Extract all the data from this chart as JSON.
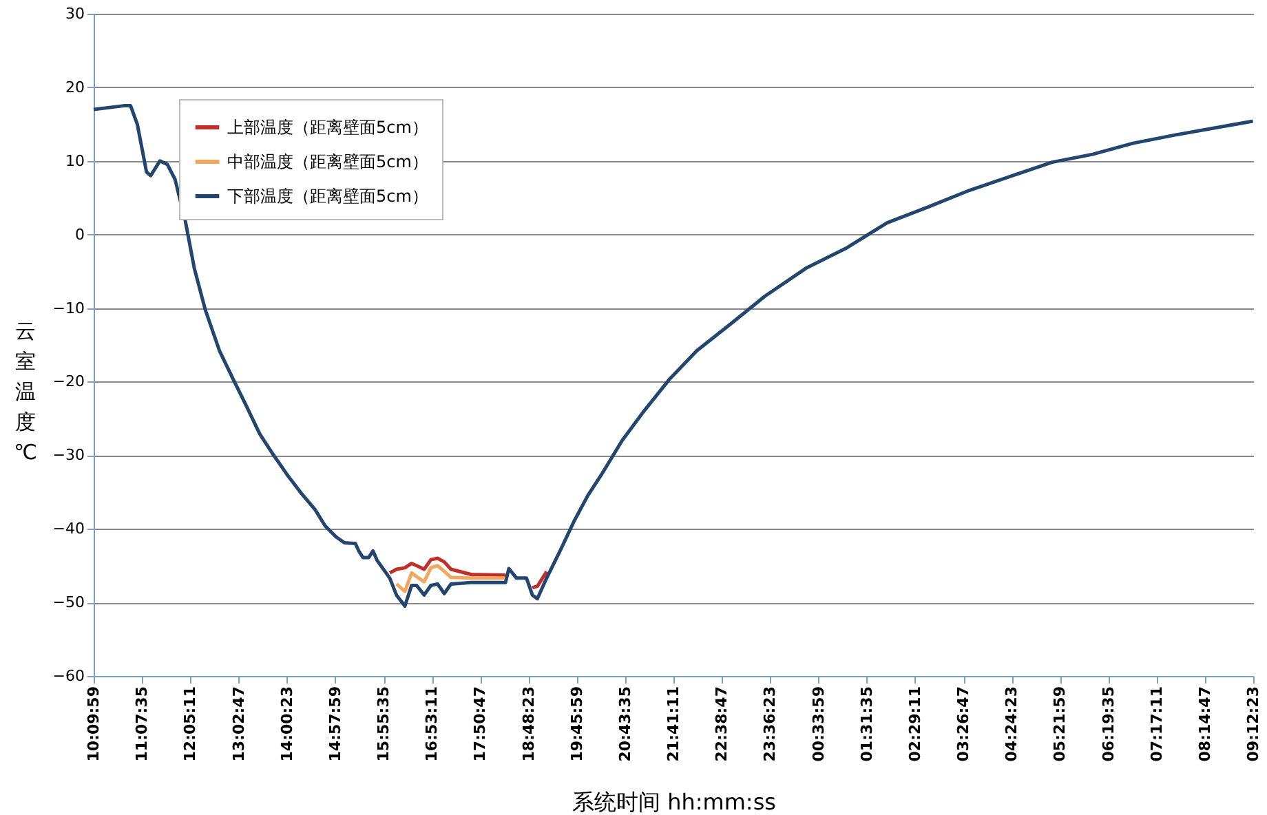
{
  "chart_data": {
    "type": "line",
    "xlabel": "系统时间 hh:mm:ss",
    "ylabel": "云室温度℃",
    "ylim": [
      -60,
      30
    ],
    "yticks": [
      -60,
      -50,
      -40,
      -30,
      -20,
      -10,
      0,
      10,
      20,
      30
    ],
    "xlim": [
      "2000-01-01T10:09:59",
      "2000-01-02T09:12:23"
    ],
    "xticks": [
      {
        "value": "2000-01-01T10:09:59",
        "label": "10:09:59"
      },
      {
        "value": "2000-01-01T11:07:35",
        "label": "11:07:35"
      },
      {
        "value": "2000-01-01T12:05:11",
        "label": "12:05:11"
      },
      {
        "value": "2000-01-01T13:02:47",
        "label": "13:02:47"
      },
      {
        "value": "2000-01-01T14:00:23",
        "label": "14:00:23"
      },
      {
        "value": "2000-01-01T14:57:59",
        "label": "14:57:59"
      },
      {
        "value": "2000-01-01T15:55:35",
        "label": "15:55:35"
      },
      {
        "value": "2000-01-01T16:53:11",
        "label": "16:53:11"
      },
      {
        "value": "2000-01-01T17:50:47",
        "label": "17:50:47"
      },
      {
        "value": "2000-01-01T18:48:23",
        "label": "18:48:23"
      },
      {
        "value": "2000-01-01T19:45:59",
        "label": "19:45:59"
      },
      {
        "value": "2000-01-01T20:43:35",
        "label": "20:43:35"
      },
      {
        "value": "2000-01-01T21:41:11",
        "label": "21:41:11"
      },
      {
        "value": "2000-01-01T22:38:47",
        "label": "22:38:47"
      },
      {
        "value": "2000-01-01T23:36:23",
        "label": "23:36:23"
      },
      {
        "value": "2000-01-02T00:33:59",
        "label": "00:33:59"
      },
      {
        "value": "2000-01-02T01:31:35",
        "label": "01:31:35"
      },
      {
        "value": "2000-01-02T02:29:11",
        "label": "02:29:11"
      },
      {
        "value": "2000-01-02T03:26:47",
        "label": "03:26:47"
      },
      {
        "value": "2000-01-02T04:24:23",
        "label": "04:24:23"
      },
      {
        "value": "2000-01-02T05:21:59",
        "label": "05:21:59"
      },
      {
        "value": "2000-01-02T06:19:35",
        "label": "06:19:35"
      },
      {
        "value": "2000-01-02T07:17:11",
        "label": "07:17:11"
      },
      {
        "value": "2000-01-02T08:14:47",
        "label": "08:14:47"
      },
      {
        "value": "2000-01-02T09:12:23",
        "label": "09:12:23"
      }
    ],
    "x": [
      "2000-01-01T10:10",
      "2000-01-01T10:46",
      "2000-01-01T10:54",
      "2000-01-01T11:02",
      "2000-01-01T11:13",
      "2000-01-01T11:18",
      "2000-01-01T11:29",
      "2000-01-01T11:38",
      "2000-01-01T11:47",
      "2000-01-01T11:59",
      "2000-01-01T12:10",
      "2000-01-01T12:23",
      "2000-01-01T12:40",
      "2000-01-01T12:56",
      "2000-01-01T13:12",
      "2000-01-01T13:28",
      "2000-01-01T13:44",
      "2000-01-01T14:01",
      "2000-01-01T14:17",
      "2000-01-01T14:34",
      "2000-01-01T14:46",
      "2000-01-01T14:59",
      "2000-01-01T15:09",
      "2000-01-01T15:22",
      "2000-01-01T15:26",
      "2000-01-01T15:31",
      "2000-01-01T15:38",
      "2000-01-01T15:43",
      "2000-01-01T15:48",
      "2000-01-01T16:03",
      "2000-01-01T16:11",
      "2000-01-01T16:21",
      "2000-01-01T16:29",
      "2000-01-01T16:35",
      "2000-01-01T16:44",
      "2000-01-01T16:52",
      "2000-01-01T17:00",
      "2000-01-01T17:08",
      "2000-01-01T17:16",
      "2000-01-01T17:40",
      "2000-01-01T18:21",
      "2000-01-01T18:25",
      "2000-01-01T18:34",
      "2000-01-01T18:46",
      "2000-01-01T18:53",
      "2000-01-01T18:59",
      "2000-01-01T19:10",
      "2000-01-01T19:26",
      "2000-01-01T19:43",
      "2000-01-01T19:59",
      "2000-01-01T20:15",
      "2000-01-01T20:40",
      "2000-01-01T21:04",
      "2000-01-01T21:37",
      "2000-01-01T22:09",
      "2000-01-01T22:50",
      "2000-01-01T23:30",
      "2000-01-02T00:19",
      "2000-01-02T01:08",
      "2000-01-02T01:56",
      "2000-01-02T02:46",
      "2000-01-02T03:34",
      "2000-01-02T04:23",
      "2000-01-02T05:12",
      "2000-01-02T06:01",
      "2000-01-02T06:49",
      "2000-01-02T07:38",
      "2000-01-02T08:27",
      "2000-01-02T09:12"
    ],
    "series": [
      {
        "name": "上部温度（距离壁面5cm）",
        "color": "#c0302a",
        "values": [
          null,
          null,
          null,
          null,
          null,
          null,
          null,
          null,
          null,
          null,
          null,
          null,
          null,
          null,
          null,
          null,
          null,
          null,
          null,
          null,
          null,
          null,
          null,
          null,
          null,
          null,
          null,
          null,
          null,
          -46.0,
          -45.5,
          -45.3,
          -44.7,
          -45.0,
          -45.5,
          -44.2,
          -44.0,
          -44.5,
          -45.5,
          -46.2,
          -46.3,
          null,
          null,
          null,
          -48.0,
          -47.8,
          -45.8,
          null,
          null,
          null,
          null,
          null,
          null,
          null,
          null,
          null,
          null,
          null,
          null,
          null,
          null,
          null,
          null,
          null,
          null,
          null,
          null,
          null,
          null
        ]
      },
      {
        "name": "中部温度（距离壁面5cm）",
        "color": "#f0a860",
        "values": [
          null,
          null,
          null,
          null,
          null,
          null,
          null,
          null,
          null,
          null,
          null,
          null,
          null,
          null,
          null,
          null,
          null,
          null,
          null,
          null,
          null,
          null,
          null,
          null,
          null,
          null,
          null,
          null,
          null,
          null,
          -47.5,
          -48.5,
          -46.0,
          -46.5,
          -47.2,
          -45.3,
          -45.0,
          -45.8,
          -46.6,
          -46.7,
          -46.7,
          null,
          null,
          null,
          null,
          null,
          null,
          null,
          null,
          null,
          null,
          null,
          null,
          null,
          null,
          null,
          null,
          null,
          null,
          null,
          null,
          null,
          null,
          null,
          null,
          null,
          null,
          null,
          null
        ]
      },
      {
        "name": "下部温度（距离壁面5cm）",
        "color": "#24466e",
        "values": [
          17.0,
          17.5,
          17.5,
          15,
          8.5,
          8,
          10,
          9.5,
          7.5,
          2,
          -4.6,
          -10.2,
          -15.8,
          -19.6,
          -23.3,
          -27.1,
          -29.9,
          -32.7,
          -35.1,
          -37.4,
          -39.6,
          -41.1,
          -41.9,
          -42.0,
          -43.0,
          -43.9,
          -43.9,
          -43.0,
          -44.3,
          -46.7,
          -49.0,
          -50.5,
          -47.7,
          -47.7,
          -49.0,
          -47.7,
          -47.5,
          -48.8,
          -47.5,
          -47.3,
          -47.3,
          -45.4,
          -46.7,
          -46.7,
          -49.0,
          -49.5,
          -46.7,
          -43.0,
          -38.9,
          -35.5,
          -32.7,
          -28.0,
          -24.3,
          -19.6,
          -15.8,
          -12.1,
          -8.4,
          -4.6,
          -1.8,
          1.6,
          3.8,
          6.0,
          7.9,
          9.8,
          10.9,
          12.4,
          13.5,
          14.5,
          15.4
        ]
      }
    ],
    "grid": "y",
    "legend": "top left",
    "line_style": "solid",
    "marker": "none"
  }
}
